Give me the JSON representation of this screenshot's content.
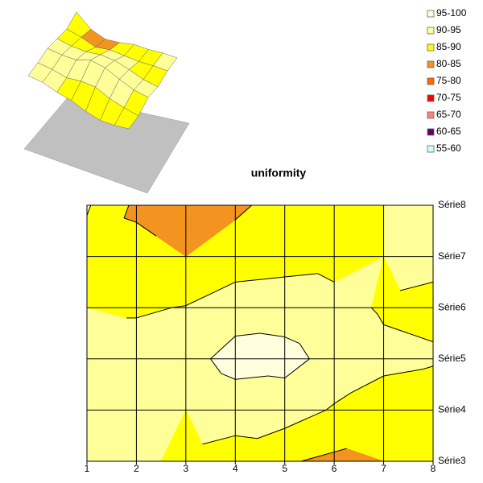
{
  "chart_data": {
    "type": "contour",
    "title": "uniformity",
    "x": [
      1,
      2,
      3,
      4,
      5,
      6,
      7,
      8
    ],
    "xlim": [
      1,
      8
    ],
    "xticks": [
      1,
      2,
      3,
      4,
      5,
      6,
      7,
      8
    ],
    "series": [
      {
        "name": "Série3",
        "values": [
          91,
          91,
          89,
          88,
          85.5,
          84,
          85,
          87
        ]
      },
      {
        "name": "Série4",
        "values": [
          91,
          91,
          90,
          92,
          92.5,
          89.5,
          88,
          87
        ]
      },
      {
        "name": "Série5",
        "values": [
          92,
          92,
          93,
          97,
          96.5,
          93.5,
          91,
          90.5
        ]
      },
      {
        "name": "Série6",
        "values": [
          90,
          89.5,
          90.2,
          92.5,
          93,
          91.5,
          89.5,
          89
        ]
      },
      {
        "name": "Série7",
        "values": [
          88,
          87,
          85,
          87.5,
          88,
          88.5,
          90,
          91
        ]
      },
      {
        "name": "Série8",
        "values": [
          90.5,
          84,
          82,
          84,
          87,
          88,
          90,
          91
        ]
      }
    ],
    "legend": [
      {
        "label": "95-100",
        "color": "#ffffdd"
      },
      {
        "label": "90-95",
        "color": "#ffff99"
      },
      {
        "label": "85-90",
        "color": "#ffff00"
      },
      {
        "label": "80-85",
        "color": "#f39320"
      },
      {
        "label": "75-80",
        "color": "#ff6600"
      },
      {
        "label": "70-75",
        "color": "#ff0000"
      },
      {
        "label": "65-70",
        "color": "#ff8080"
      },
      {
        "label": "60-65",
        "color": "#660066"
      },
      {
        "label": "55-60",
        "color": "#ccffff"
      }
    ]
  }
}
